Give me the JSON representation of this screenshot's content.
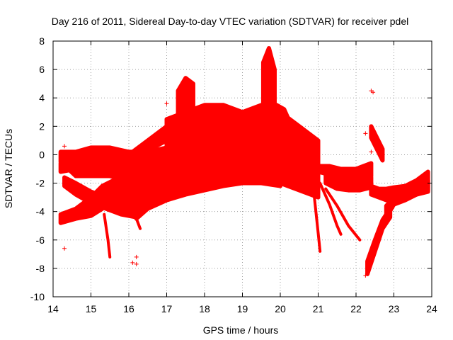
{
  "chart_data": {
    "type": "scatter",
    "title": "Day 216 of 2011, Sidereal Day-to-day VTEC variation (SDTVAR) for receiver pdel",
    "xlabel": "GPS time / hours",
    "ylabel": "SDTVAR / TECUs",
    "xlim": [
      14,
      24
    ],
    "ylim": [
      -10,
      8
    ],
    "x_ticks": [
      14,
      15,
      16,
      17,
      18,
      19,
      20,
      21,
      22,
      23,
      24
    ],
    "y_ticks": [
      -10,
      -8,
      -6,
      -4,
      -2,
      0,
      2,
      4,
      6,
      8
    ],
    "grid": true,
    "marker": "+",
    "color": "#ff0000",
    "band_series": [
      {
        "x": [
          14.2,
          14.6,
          15.0,
          15.5,
          16.0,
          16.5,
          17.0
        ],
        "ylow": [
          -0.5,
          -1.5,
          -1.5,
          -1.5,
          -1.8,
          -2.0,
          -2.0
        ],
        "yhigh": [
          0.2,
          0.2,
          0.5,
          0.5,
          0.2,
          0.2,
          0.5
        ]
      },
      {
        "x": [
          14.2,
          14.6,
          15.0,
          15.5,
          16.0,
          16.5
        ],
        "ylow": [
          -1.2,
          -1.0,
          -1.0,
          -1.2,
          -1.6,
          -1.8
        ],
        "yhigh": [
          -0.6,
          -0.4,
          -0.2,
          -0.2,
          -0.6,
          -0.8
        ]
      },
      {
        "x": [
          14.2,
          14.6,
          15.0,
          15.3,
          15.6,
          16.0
        ],
        "ylow": [
          -4.8,
          -4.5,
          -4.3,
          -3.8,
          -3.0,
          -2.6
        ],
        "yhigh": [
          -4.2,
          -3.8,
          -3.0,
          -2.2,
          -1.8,
          -1.6
        ]
      },
      {
        "x": [
          14.3,
          14.6,
          15.0,
          15.4,
          15.8,
          16.2
        ],
        "ylow": [
          -2.2,
          -2.8,
          -3.4,
          -3.8,
          -4.2,
          -4.4
        ],
        "yhigh": [
          -1.6,
          -2.0,
          -2.6,
          -3.0,
          -3.4,
          -3.6
        ]
      },
      {
        "x": [
          15.5,
          16.0,
          16.5,
          17.0,
          17.5,
          18.0,
          18.5,
          19.0,
          19.5,
          20.0,
          20.5,
          21.0
        ],
        "ylow": [
          -3.8,
          -3.5,
          -3.0,
          -2.5,
          -2.0,
          -1.8,
          -1.6,
          -1.5,
          -1.8,
          -2.0,
          -2.5,
          -3.0
        ],
        "yhigh": [
          -2.5,
          -2.0,
          -1.5,
          -1.0,
          -0.5,
          0.0,
          0.2,
          0.5,
          0.2,
          -0.2,
          -0.8,
          -1.5
        ]
      },
      {
        "x": [
          16.0,
          16.5,
          17.0,
          17.5,
          18.0
        ],
        "ylow": [
          -0.5,
          0.3,
          1.0,
          1.5,
          2.0
        ],
        "yhigh": [
          0.0,
          1.0,
          2.0,
          2.8,
          3.0
        ]
      },
      {
        "x": [
          16.2,
          16.5,
          17.0,
          17.5,
          18.0,
          18.5,
          19.0,
          19.5,
          20.0
        ],
        "ylow": [
          -4.5,
          -3.8,
          -3.2,
          -2.8,
          -2.5,
          -2.2,
          -2.0,
          -2.0,
          -2.2
        ],
        "yhigh": [
          -3.5,
          -3.0,
          -2.2,
          -1.8,
          -1.5,
          -1.3,
          -1.2,
          -1.3,
          -1.5
        ]
      },
      {
        "x": [
          17.0,
          17.5,
          18.0,
          18.5,
          19.0,
          19.5,
          20.0,
          20.5,
          21.0
        ],
        "ylow": [
          -1.0,
          -0.5,
          -1.0,
          -1.0,
          -1.5,
          -1.5,
          -1.0,
          -1.5,
          -2.0
        ],
        "yhigh": [
          2.5,
          3.0,
          3.5,
          3.5,
          3.0,
          3.5,
          3.0,
          2.0,
          1.0
        ]
      },
      {
        "x": [
          17.3,
          17.5,
          17.7
        ],
        "ylow": [
          2.0,
          2.5,
          2.0
        ],
        "yhigh": [
          4.5,
          5.4,
          5.0
        ]
      },
      {
        "x": [
          19.55,
          19.7,
          19.85
        ],
        "ylow": [
          3.0,
          2.0,
          2.0
        ],
        "yhigh": [
          6.5,
          7.5,
          6.0
        ]
      },
      {
        "x": [
          19.9,
          20.1,
          20.3
        ],
        "ylow": [
          2.0,
          2.0,
          2.0
        ],
        "yhigh": [
          3.5,
          3.2,
          2.0
        ]
      },
      {
        "x": [
          20.0,
          20.3,
          20.6,
          21.0
        ],
        "ylow": [
          0.0,
          -0.5,
          -1.0,
          -1.5
        ],
        "yhigh": [
          2.0,
          1.5,
          1.0,
          0.5
        ]
      },
      {
        "x": [
          21.0,
          21.3,
          21.6,
          22.0,
          22.4
        ],
        "ylow": [
          -1.2,
          -1.4,
          -1.6,
          -1.8,
          -1.5
        ],
        "yhigh": [
          -0.8,
          -0.8,
          -1.0,
          -1.0,
          -0.6
        ]
      },
      {
        "x": [
          21.2,
          21.5,
          21.8,
          22.1,
          22.4
        ],
        "ylow": [
          -2.0,
          -2.4,
          -2.5,
          -2.5,
          -2.3
        ],
        "yhigh": [
          -1.2,
          -1.5,
          -1.5,
          -1.6,
          -1.6
        ]
      },
      {
        "x": [
          22.4,
          22.6,
          22.8,
          23.0,
          23.3,
          23.6,
          23.9
        ],
        "ylow": [
          -2.8,
          -3.0,
          -3.2,
          -3.2,
          -3.0,
          -2.8,
          -2.5
        ],
        "yhigh": [
          -2.2,
          -2.4,
          -2.4,
          -2.3,
          -2.2,
          -1.8,
          -1.2
        ]
      },
      {
        "x": [
          22.3,
          22.5,
          22.7,
          22.9
        ],
        "ylow": [
          -8.4,
          -6.8,
          -5.2,
          -4.4
        ],
        "yhigh": [
          -7.5,
          -6.0,
          -4.6,
          -3.8
        ]
      },
      {
        "x": [
          22.8,
          23.0,
          23.3,
          23.6,
          23.9
        ],
        "ylow": [
          -4.4,
          -3.5,
          -3.2,
          -2.8,
          -2.6
        ],
        "yhigh": [
          -3.6,
          -3.0,
          -2.5,
          -2.2,
          -1.8
        ]
      },
      {
        "x": [
          22.4,
          22.55,
          22.7
        ],
        "ylow": [
          1.2,
          0.4,
          -0.4
        ],
        "yhigh": [
          2.0,
          1.2,
          0.4
        ]
      }
    ],
    "line_series": [
      {
        "x": [
          15.35,
          15.45,
          15.5
        ],
        "y": [
          -4.2,
          -6.0,
          -7.2
        ]
      },
      {
        "x": [
          20.9,
          21.0,
          21.05
        ],
        "y": [
          -3.0,
          -5.5,
          -6.8
        ]
      },
      {
        "x": [
          21.05,
          21.3,
          21.5,
          21.6
        ],
        "y": [
          -2.0,
          -3.5,
          -5.0,
          -5.6
        ]
      },
      {
        "x": [
          21.2,
          21.5,
          21.8,
          22.1
        ],
        "y": [
          -2.4,
          -3.6,
          -5.0,
          -6.0
        ]
      },
      {
        "x": [
          16.1,
          16.2,
          16.3
        ],
        "y": [
          -3.6,
          -4.5,
          -5.2
        ]
      }
    ],
    "outlier_points": [
      {
        "x": 14.3,
        "y": 0.6
      },
      {
        "x": 14.3,
        "y": -6.6
      },
      {
        "x": 14.35,
        "y": -2.3
      },
      {
        "x": 16.1,
        "y": -7.6
      },
      {
        "x": 16.2,
        "y": -7.7
      },
      {
        "x": 16.2,
        "y": -7.2
      },
      {
        "x": 16.05,
        "y": -4.0
      },
      {
        "x": 17.0,
        "y": 3.6
      },
      {
        "x": 22.4,
        "y": 4.5
      },
      {
        "x": 22.45,
        "y": 4.4
      },
      {
        "x": 22.25,
        "y": 1.5
      },
      {
        "x": 22.4,
        "y": 0.2
      },
      {
        "x": 22.25,
        "y": -8.5
      }
    ]
  }
}
